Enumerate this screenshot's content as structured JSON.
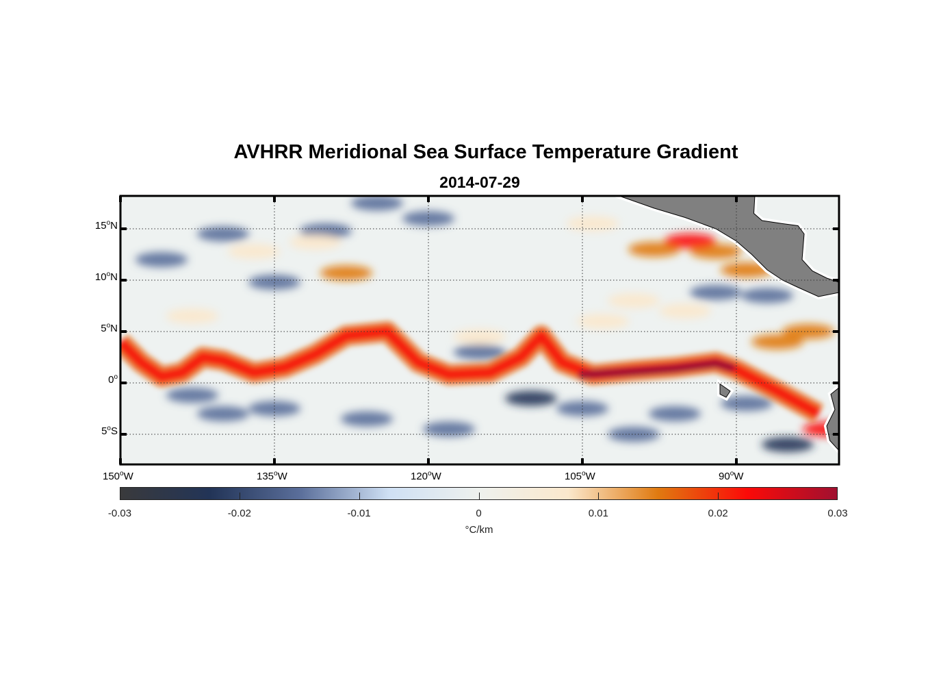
{
  "chart_data": {
    "type": "heatmap",
    "title": "AVHRR Meridional Sea Surface Temperature Gradient",
    "subtitle": "2014-07-29",
    "lon_range": [
      -150,
      -80
    ],
    "lat_range": [
      -8,
      18
    ],
    "grid": true,
    "lon_ticks": [
      {
        "value": -150,
        "num": "150",
        "hem": "W"
      },
      {
        "value": -135,
        "num": "135",
        "hem": "W"
      },
      {
        "value": -120,
        "num": "120",
        "hem": "W"
      },
      {
        "value": -105,
        "num": "105",
        "hem": "W"
      },
      {
        "value": -90,
        "num": "90",
        "hem": "W"
      }
    ],
    "lat_ticks": [
      {
        "value": 15,
        "num": "15",
        "hem": "N"
      },
      {
        "value": 10,
        "num": "10",
        "hem": "N"
      },
      {
        "value": 5,
        "num": "5",
        "hem": "N"
      },
      {
        "value": 0,
        "num": "0",
        "hem": ""
      },
      {
        "value": -5,
        "num": "5",
        "hem": "S"
      }
    ],
    "colorbar": {
      "label": "°C/km",
      "range": [
        -0.03,
        0.03
      ],
      "ticks": [
        "-0.03",
        "-0.02",
        "-0.01",
        "0",
        "0.01",
        "0.02",
        "0.03"
      ],
      "tick_values": [
        -0.03,
        -0.02,
        -0.01,
        0,
        0.01,
        0.02,
        0.03
      ],
      "colors": [
        "#3a3a3c",
        "#223457",
        "#5a6e9a",
        "#cfe0f4",
        "#eef1ee",
        "#fbe8cc",
        "#e07a10",
        "#fb0a08",
        "#a01030"
      ]
    },
    "equatorial_front": {
      "value": 0.02,
      "path": [
        [
          -150,
          4
        ],
        [
          -148,
          2
        ],
        [
          -146,
          0.6
        ],
        [
          -144,
          1
        ],
        [
          -142,
          2.5
        ],
        [
          -140,
          2.2
        ],
        [
          -137,
          1
        ],
        [
          -134,
          1.5
        ],
        [
          -131,
          2.8
        ],
        [
          -128,
          4.6
        ],
        [
          -124,
          5
        ],
        [
          -121,
          2
        ],
        [
          -118,
          0.8
        ],
        [
          -114,
          1
        ],
        [
          -111,
          2.5
        ],
        [
          -109,
          4.6
        ],
        [
          -107,
          2
        ],
        [
          -104,
          0.8
        ],
        [
          -100,
          1.2
        ],
        [
          -96,
          1.5
        ],
        [
          -92,
          2
        ],
        [
          -90,
          1.3
        ],
        [
          -86,
          -0.8
        ],
        [
          -82,
          -3
        ]
      ],
      "core": [
        [
          -105,
          0.8
        ],
        [
          -100,
          1.1
        ],
        [
          -96,
          1.4
        ],
        [
          -92,
          1.9
        ],
        [
          -90.5,
          1.5
        ]
      ]
    },
    "features": [
      {
        "lon": -135,
        "lat": -2.5,
        "v": -0.018
      },
      {
        "lon": -140,
        "lat": -3,
        "v": -0.012
      },
      {
        "lon": -126,
        "lat": -3.5,
        "v": -0.016
      },
      {
        "lon": -110,
        "lat": -1.5,
        "v": -0.022
      },
      {
        "lon": -105,
        "lat": -2.5,
        "v": -0.018
      },
      {
        "lon": -96,
        "lat": -3,
        "v": -0.012
      },
      {
        "lon": -89,
        "lat": -2,
        "v": -0.015
      },
      {
        "lon": -85,
        "lat": -6,
        "v": -0.02
      },
      {
        "lon": -143,
        "lat": -1.2,
        "v": -0.012
      },
      {
        "lon": -118,
        "lat": -4.5,
        "v": -0.012
      },
      {
        "lon": -100,
        "lat": -5,
        "v": -0.012
      },
      {
        "lon": -140,
        "lat": 14.5,
        "v": -0.018
      },
      {
        "lon": -130,
        "lat": 14.8,
        "v": -0.016
      },
      {
        "lon": -125,
        "lat": 17.5,
        "v": -0.018
      },
      {
        "lon": -135,
        "lat": 9.8,
        "v": -0.016
      },
      {
        "lon": -120,
        "lat": 16,
        "v": -0.012
      },
      {
        "lon": -146,
        "lat": 12,
        "v": -0.014
      },
      {
        "lon": -92,
        "lat": 8.8,
        "v": -0.018
      },
      {
        "lon": -87,
        "lat": 8.5,
        "v": -0.016
      },
      {
        "lon": -115,
        "lat": 3,
        "v": -0.014
      },
      {
        "lon": -104,
        "lat": 15.5,
        "v": 0.011
      },
      {
        "lon": -98,
        "lat": 13,
        "v": 0.012
      },
      {
        "lon": -92,
        "lat": 12.8,
        "v": 0.014
      },
      {
        "lon": -89,
        "lat": 11,
        "v": 0.013
      },
      {
        "lon": -128,
        "lat": 10.7,
        "v": 0.013
      },
      {
        "lon": -137,
        "lat": 12.8,
        "v": 0.01
      },
      {
        "lon": -131,
        "lat": 13.7,
        "v": 0.009
      },
      {
        "lon": -103,
        "lat": 6,
        "v": 0.01
      },
      {
        "lon": -95,
        "lat": 7,
        "v": 0.011
      },
      {
        "lon": -83,
        "lat": 5,
        "v": 0.012
      },
      {
        "lon": -143,
        "lat": 6.5,
        "v": 0.009
      },
      {
        "lon": -115,
        "lat": 4.5,
        "v": 0.01
      },
      {
        "lon": -100,
        "lat": 8,
        "v": 0.009
      },
      {
        "lon": -86,
        "lat": 4,
        "v": 0.014
      },
      {
        "lon": -81,
        "lat": -4.5,
        "v": 0.02
      },
      {
        "lon": -94.5,
        "lat": 13.8,
        "v": 0.022
      }
    ],
    "land": [
      [
        [
          -101.7,
          18.3
        ],
        [
          -98,
          17
        ],
        [
          -95,
          16.1
        ],
        [
          -92,
          15
        ],
        [
          -90,
          13.8
        ],
        [
          -88.5,
          12.5
        ],
        [
          -87,
          11
        ],
        [
          -85.5,
          10
        ],
        [
          -84,
          9.3
        ],
        [
          -82,
          8.4
        ],
        [
          -80,
          8.8
        ],
        [
          -80,
          9.8
        ],
        [
          -81.2,
          10.2
        ],
        [
          -82.6,
          10.9
        ],
        [
          -83.6,
          12
        ],
        [
          -83.4,
          14.5
        ],
        [
          -84,
          15.3
        ],
        [
          -85.5,
          15.5
        ],
        [
          -87.5,
          15.8
        ],
        [
          -88.3,
          16.5
        ],
        [
          -88.2,
          18.3
        ]
      ],
      [
        [
          -79.8,
          -0.3
        ],
        [
          -80.8,
          -1.1
        ],
        [
          -80.4,
          -2.6
        ],
        [
          -81.2,
          -4.2
        ],
        [
          -80.9,
          -5.6
        ],
        [
          -79.8,
          -6.8
        ]
      ],
      [
        [
          -91.6,
          -0.1
        ],
        [
          -90.6,
          -0.8
        ],
        [
          -91,
          -1.4
        ],
        [
          -91.6,
          -1.1
        ]
      ]
    ]
  }
}
